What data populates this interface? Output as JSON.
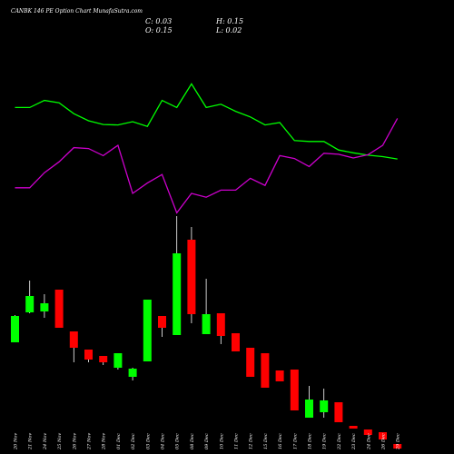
{
  "header": {
    "title": "CANBK 146  PE Option  Chart MunafaSutra.com",
    "close_label": "C: 0.03",
    "high_label": "H: 0.15",
    "open_label": "O: 0.15",
    "low_label": "L: 0.02"
  },
  "colors": {
    "background": "#000000",
    "up": "#00ff00",
    "down": "#ff0000",
    "line_green": "#00ff00",
    "line_magenta": "#cc00cc",
    "wick": "#ffffff",
    "text": "#ffffff"
  },
  "chart_data": {
    "type": "candlestick",
    "categories": [
      "20 Nov",
      "21 Nov",
      "24 Nov",
      "25 Nov",
      "26 Nov",
      "27 Nov",
      "28 Nov",
      "01 Dec",
      "02 Dec",
      "03 Dec",
      "04 Dec",
      "05 Dec",
      "08 Dec",
      "09 Dec",
      "10 Dec",
      "11 Dec",
      "12 Dec",
      "15 Dec",
      "16 Dec",
      "17 Dec",
      "18 Dec",
      "19 Dec",
      "22 Dec",
      "23 Dec",
      "24 Dec",
      "26 Dec",
      "29 Dec"
    ],
    "candles": [
      {
        "o": 0.0,
        "h": 0.3,
        "l": 0.0,
        "c": 0.29
      },
      {
        "o": 0.33,
        "h": 0.68,
        "l": 0.32,
        "c": 0.51
      },
      {
        "o": 0.34,
        "h": 0.53,
        "l": 0.27,
        "c": 0.43
      },
      {
        "o": 0.58,
        "h": 0.58,
        "l": 0.16,
        "c": 0.16
      },
      {
        "o": 0.12,
        "h": 0.12,
        "l": -0.22,
        "c": -0.06
      },
      {
        "o": -0.08,
        "h": -0.08,
        "l": -0.22,
        "c": -0.19
      },
      {
        "o": -0.15,
        "h": -0.15,
        "l": -0.25,
        "c": -0.22
      },
      {
        "o": -0.28,
        "h": -0.14,
        "l": -0.3,
        "c": -0.12
      },
      {
        "o": -0.38,
        "h": -0.28,
        "l": -0.42,
        "c": -0.29
      },
      {
        "o": -0.21,
        "h": 0.47,
        "l": -0.21,
        "c": 0.47
      },
      {
        "o": 0.29,
        "h": 0.29,
        "l": 0.06,
        "c": 0.16
      },
      {
        "o": 0.08,
        "h": 1.39,
        "l": 0.08,
        "c": 0.98
      },
      {
        "o": 1.13,
        "h": 1.27,
        "l": 0.21,
        "c": 0.31
      },
      {
        "o": 0.09,
        "h": 0.7,
        "l": 0.09,
        "c": 0.31
      },
      {
        "o": 0.32,
        "h": 0.32,
        "l": -0.02,
        "c": 0.07
      },
      {
        "o": 0.1,
        "h": 0.1,
        "l": -0.08,
        "c": -0.1
      },
      {
        "o": -0.06,
        "h": -0.06,
        "l": -0.38,
        "c": -0.38
      },
      {
        "o": -0.12,
        "h": -0.12,
        "l": -0.5,
        "c": -0.5
      },
      {
        "o": -0.31,
        "h": -0.31,
        "l": -0.43,
        "c": -0.43
      },
      {
        "o": -0.3,
        "h": -0.3,
        "l": -0.75,
        "c": -0.75
      },
      {
        "o": -0.83,
        "h": -0.48,
        "l": -0.83,
        "c": -0.63
      },
      {
        "o": -0.77,
        "h": -0.51,
        "l": -0.83,
        "c": -0.64
      },
      {
        "o": -0.66,
        "h": -0.66,
        "l": -0.88,
        "c": -0.88
      },
      {
        "o": -0.92,
        "h": -0.92,
        "l": -0.95,
        "c": -0.95
      },
      {
        "o": -0.96,
        "h": -0.96,
        "l": -1.02,
        "c": -1.02
      },
      {
        "o": -0.99,
        "h": -0.99,
        "l": -1.07,
        "c": -1.07
      },
      {
        "o": -1.12,
        "h": -1.12,
        "l": -1.17,
        "c": -1.17
      }
    ],
    "series": [
      {
        "values": [
          0.8,
          0.8,
          0.95,
          0.9,
          0.67,
          0.52,
          0.44,
          0.43,
          0.5,
          0.4,
          0.95,
          0.8,
          1.3,
          0.8,
          0.87,
          0.72,
          0.6,
          0.43,
          0.48,
          0.1,
          0.08,
          0.08,
          -0.1,
          -0.16,
          -0.21,
          -0.24,
          -0.29
        ]
      },
      {
        "values": [
          -0.9,
          -0.9,
          -0.58,
          -0.35,
          -0.05,
          -0.07,
          -0.22,
          0.0,
          -1.02,
          -0.8,
          -0.62,
          -1.43,
          -1.02,
          -1.1,
          -0.95,
          -0.95,
          -0.7,
          -0.85,
          -0.22,
          -0.28,
          -0.45,
          -0.17,
          -0.19,
          -0.27,
          -0.2,
          0.0,
          0.57
        ]
      }
    ]
  }
}
